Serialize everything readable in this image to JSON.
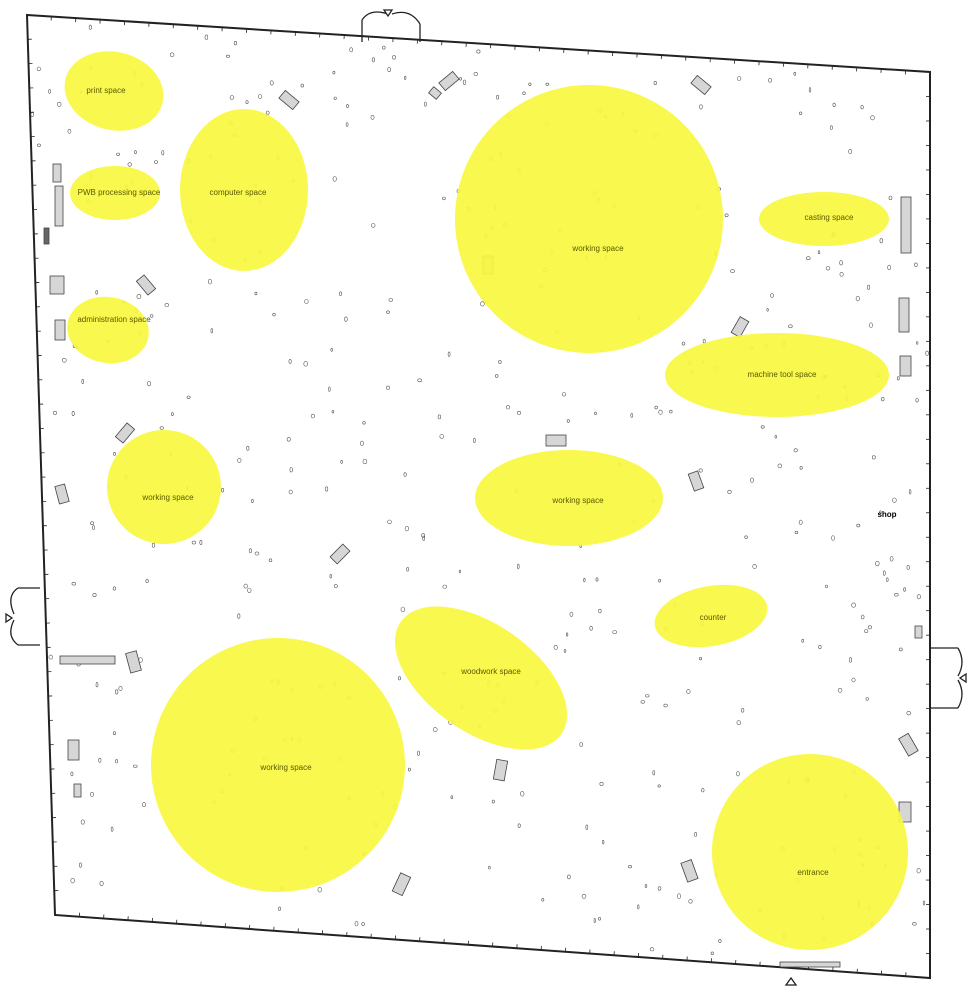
{
  "zones": [
    {
      "label": "print space"
    },
    {
      "label": "PWB processing space"
    },
    {
      "label": "computer space"
    },
    {
      "label": "administration space"
    },
    {
      "label": "working space"
    },
    {
      "label": "casting space"
    },
    {
      "label": "machine tool space"
    },
    {
      "label": "working space"
    },
    {
      "label": "working space"
    },
    {
      "label": "counter"
    },
    {
      "label": "woodwork space"
    },
    {
      "label": "working space"
    },
    {
      "label": "entrance"
    }
  ],
  "outside_label": "shop",
  "colors": {
    "zone_fill": "#f8f73f",
    "furniture": "#d6d6d6",
    "wall": "#222222"
  }
}
